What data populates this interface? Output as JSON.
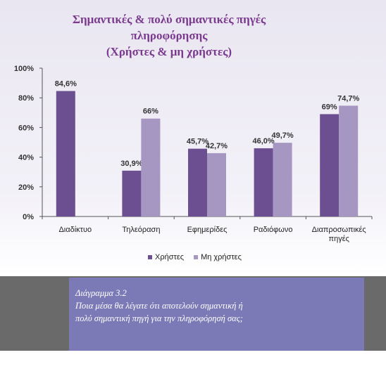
{
  "chart_data": {
    "type": "bar",
    "title_lines": [
      "Σημαντικές & πολύ σημαντικές πηγές",
      "πληροφόρησης",
      "(Χρήστες  & μη χρήστες)"
    ],
    "categories": [
      [
        "Διαδίκτυο"
      ],
      [
        "Τηλεόραση"
      ],
      [
        "Εφημερίδες"
      ],
      [
        "Ραδιόφωνο"
      ],
      [
        "Διαπροσωπικές",
        "πηγές"
      ]
    ],
    "series": [
      {
        "name": "Χρήστες",
        "color": "#6b4f91",
        "values": [
          84.6,
          30.9,
          45.7,
          46.0,
          69
        ],
        "labels": [
          "84,6%",
          "30,9%",
          "45,7%",
          "46,0%",
          "69%"
        ]
      },
      {
        "name": "Μη χρήστες",
        "color": "#a696c2",
        "values": [
          null,
          66,
          42.7,
          49.7,
          74.7
        ],
        "labels": [
          "",
          "66%",
          "42,7%",
          "49,7%",
          "74,7%"
        ]
      }
    ],
    "y_ticks": [
      0,
      20,
      40,
      60,
      80,
      100
    ],
    "y_tick_labels": [
      "0%",
      "20%",
      "40%",
      "60%",
      "80%",
      "100%"
    ],
    "ylim": [
      0,
      100
    ],
    "grid": false,
    "legend_position": "bottom"
  },
  "caption": {
    "line1": "Διάγραμμα 3.2",
    "line2": "Ποια μέσα θα λέγατε ότι αποτελούν σημαντική ή",
    "line3": "πολύ σημαντική πηγή για την πληροφόρησή σας;"
  }
}
